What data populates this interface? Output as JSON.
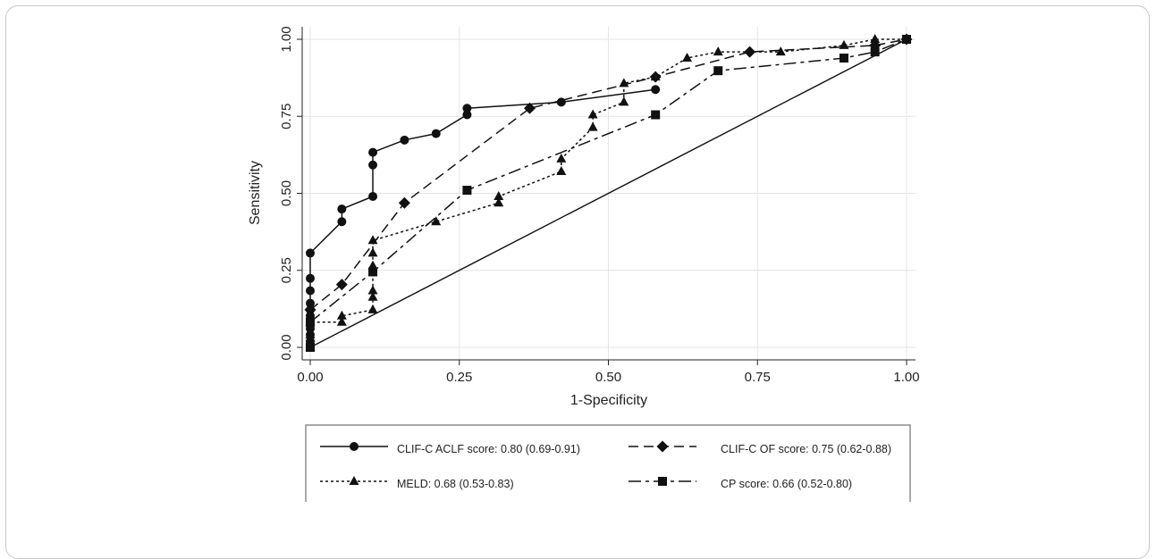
{
  "chart_data": {
    "type": "line",
    "title": "",
    "xlabel": "1-Specificity",
    "ylabel": "Sensitivity",
    "xlim": [
      0,
      1
    ],
    "ylim": [
      0,
      1
    ],
    "xticks": [
      "0.00",
      "0.25",
      "0.50",
      "0.75",
      "1.00"
    ],
    "yticks": [
      "0.00",
      "0.25",
      "0.50",
      "0.75",
      "1.00"
    ],
    "grid": true,
    "legend_position": "bottom",
    "series": [
      {
        "name": "CLIF-C ACLF score: 0.80 (0.69-0.91)",
        "marker": "circle",
        "dash": "solid",
        "x": [
          0,
          0,
          0,
          0,
          0,
          0,
          0,
          0,
          0,
          0,
          0,
          0.053,
          0.053,
          0.105,
          0.105,
          0.105,
          0.158,
          0.211,
          0.263,
          0.263,
          0.421,
          0.579
        ],
        "y": [
          0,
          0.02,
          0.041,
          0.061,
          0.082,
          0.102,
          0.122,
          0.143,
          0.184,
          0.224,
          0.306,
          0.408,
          0.449,
          0.49,
          0.592,
          0.633,
          0.673,
          0.694,
          0.755,
          0.776,
          0.796,
          0.837
        ]
      },
      {
        "name": "CLIF-C OF score: 0.75 (0.62-0.88)",
        "marker": "diamond",
        "dash": "longdash",
        "x": [
          0,
          0.053,
          0.158,
          0.368,
          0.579,
          0.737,
          0.947,
          1
        ],
        "y": [
          0.122,
          0.204,
          0.469,
          0.776,
          0.878,
          0.959,
          0.98,
          1
        ]
      },
      {
        "name": "MELD: 0.68 (0.53-0.83)",
        "marker": "triangle",
        "dash": "dotted",
        "x": [
          0,
          0,
          0,
          0.053,
          0.053,
          0.105,
          0.105,
          0.105,
          0.105,
          0.105,
          0.105,
          0.211,
          0.316,
          0.316,
          0.421,
          0.421,
          0.474,
          0.474,
          0.526,
          0.526,
          0.579,
          0.632,
          0.684,
          0.789,
          0.895,
          0.947,
          1
        ],
        "y": [
          0,
          0.041,
          0.082,
          0.082,
          0.102,
          0.122,
          0.163,
          0.184,
          0.265,
          0.306,
          0.347,
          0.408,
          0.469,
          0.49,
          0.571,
          0.612,
          0.714,
          0.755,
          0.796,
          0.857,
          0.878,
          0.939,
          0.959,
          0.959,
          0.98,
          1,
          1
        ]
      },
      {
        "name": "CP score: 0.66 (0.52-0.80)",
        "marker": "square",
        "dash": "dashdot",
        "x": [
          0,
          0,
          0.105,
          0.263,
          0.579,
          0.684,
          0.895,
          0.947,
          1
        ],
        "y": [
          0,
          0.082,
          0.245,
          0.51,
          0.755,
          0.898,
          0.939,
          0.959,
          1
        ]
      }
    ],
    "reference_line": {
      "x": [
        0,
        1
      ],
      "y": [
        0,
        1
      ]
    }
  },
  "legend": {
    "items": [
      "CLIF-C ACLF score: 0.80 (0.69-0.91)",
      "CLIF-C OF score: 0.75 (0.62-0.88)",
      "MELD: 0.68 (0.53-0.83)",
      "CP score: 0.66 (0.52-0.80)"
    ]
  }
}
